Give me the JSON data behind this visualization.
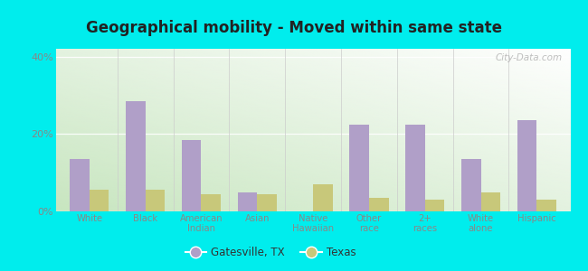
{
  "title": "Geographical mobility - Moved within same state",
  "categories": [
    "White",
    "Black",
    "American\nIndian",
    "Asian",
    "Native\nHawaiian",
    "Other\nrace",
    "2+\nraces",
    "White\nalone",
    "Hispanic"
  ],
  "gatesville_values": [
    13.5,
    28.5,
    18.5,
    5.0,
    0.0,
    22.5,
    22.5,
    13.5,
    23.5
  ],
  "texas_values": [
    5.5,
    5.5,
    4.5,
    4.5,
    7.0,
    3.5,
    3.0,
    5.0,
    3.0
  ],
  "gatesville_color": "#b09fc8",
  "texas_color": "#c8c87a",
  "background_outer": "#00eded",
  "ylim": [
    0,
    42
  ],
  "yticks": [
    0,
    20,
    40
  ],
  "ytick_labels": [
    "0%",
    "20%",
    "40%"
  ],
  "legend_gatesville": "Gatesville, TX",
  "legend_texas": "Texas",
  "bar_width": 0.35,
  "watermark": "City-Data.com",
  "grad_colors": [
    "#c8e6c0",
    "#f0f8ee",
    "#f8fcf8",
    "#ffffff"
  ],
  "grid_color": "#dddddd",
  "separator_color": "#cccccc",
  "tick_color": "#888888",
  "title_color": "#222222"
}
